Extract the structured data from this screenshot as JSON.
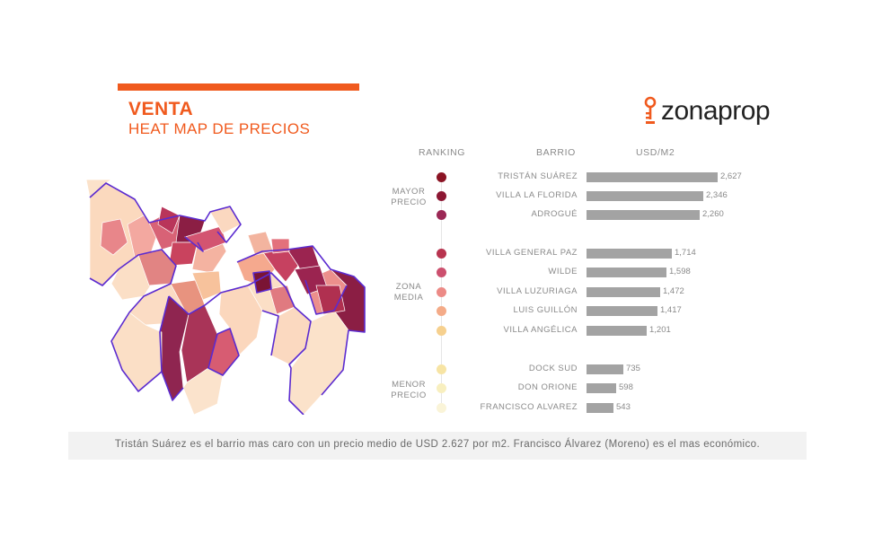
{
  "header": {
    "title": "VENTA",
    "subtitle": "HEAT MAP DE PRECIOS",
    "accent_color": "#f05a1e",
    "logo_text": "zonaprop",
    "logo_icon": "key-pin-icon"
  },
  "columns": {
    "ranking": "RANKING",
    "barrio": "BARRIO",
    "usd": "USD/M2"
  },
  "groups": {
    "mayor": [
      "MAYOR",
      "PRECIO"
    ],
    "media": [
      "ZONA",
      "MEDIA"
    ],
    "menor": [
      "MENOR",
      "PRECIO"
    ]
  },
  "chart_data": {
    "type": "bar",
    "orientation": "horizontal",
    "categories": [
      "TRISTÁN SUÁREZ",
      "VILLA LA FLORIDA",
      "ADROGUÉ",
      "VILLA GENERAL PAZ",
      "WILDE",
      "VILLA LUZURIAGA",
      "LUIS GUILLÓN",
      "VILLA ANGÉLICA",
      "DOCK SUD",
      "DON ORIONE",
      "FRANCISCO ALVAREZ"
    ],
    "values": [
      2627,
      2346,
      2260,
      1714,
      1598,
      1472,
      1417,
      1201,
      735,
      598,
      543
    ],
    "value_labels": [
      "2,627",
      "2,346",
      "2,260",
      "1,714",
      "1,598",
      "1,472",
      "1,417",
      "1,201",
      "735",
      "598",
      "543"
    ],
    "rank_colors": [
      "#8b1424",
      "#8c1733",
      "#9b2855",
      "#b8344f",
      "#cc506e",
      "#ec8a86",
      "#f4ab88",
      "#f6d08e",
      "#f7e4a4",
      "#f8efbf",
      "#faf4d8"
    ],
    "bar_color": "#a3a3a3",
    "xlim": [
      0,
      2627
    ]
  },
  "footer": {
    "text": "Tristán Suárez es el barrio mas caro con un precio medio de USD 2.627 por m2. Francisco Álvarez (Moreno) es el mas económico."
  }
}
